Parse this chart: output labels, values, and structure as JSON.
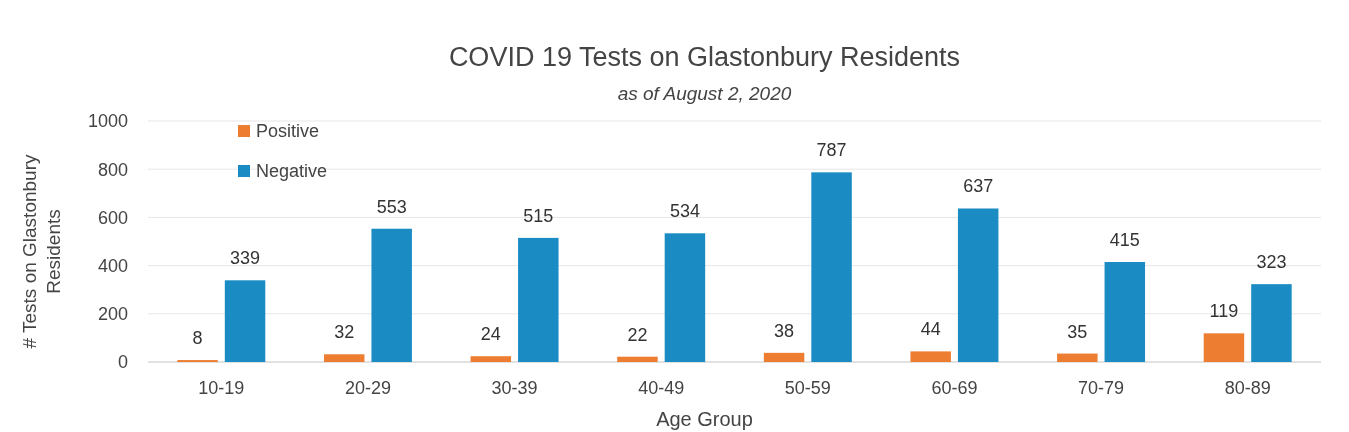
{
  "chart_data": {
    "type": "bar",
    "title": "COVID 19 Tests on Glastonbury Residents",
    "subtitle": "as of August 2, 2020",
    "xlabel": "Age Group",
    "ylabel": "# Tests on Glastonbury Residents",
    "categories": [
      "10-19",
      "20-29",
      "30-39",
      "40-49",
      "50-59",
      "60-69",
      "70-79",
      "80-89"
    ],
    "series": [
      {
        "name": "Positive",
        "color": "#ed7d31",
        "values": [
          8,
          32,
          24,
          22,
          38,
          44,
          35,
          119
        ]
      },
      {
        "name": "Negative",
        "color": "#1b8cc3",
        "values": [
          339,
          553,
          515,
          534,
          787,
          637,
          415,
          323
        ]
      }
    ],
    "ylim": [
      0,
      1000
    ],
    "yticks": [
      0,
      200,
      400,
      600,
      800,
      1000
    ],
    "grid": "y",
    "legend": "top left",
    "data_labels": true
  }
}
